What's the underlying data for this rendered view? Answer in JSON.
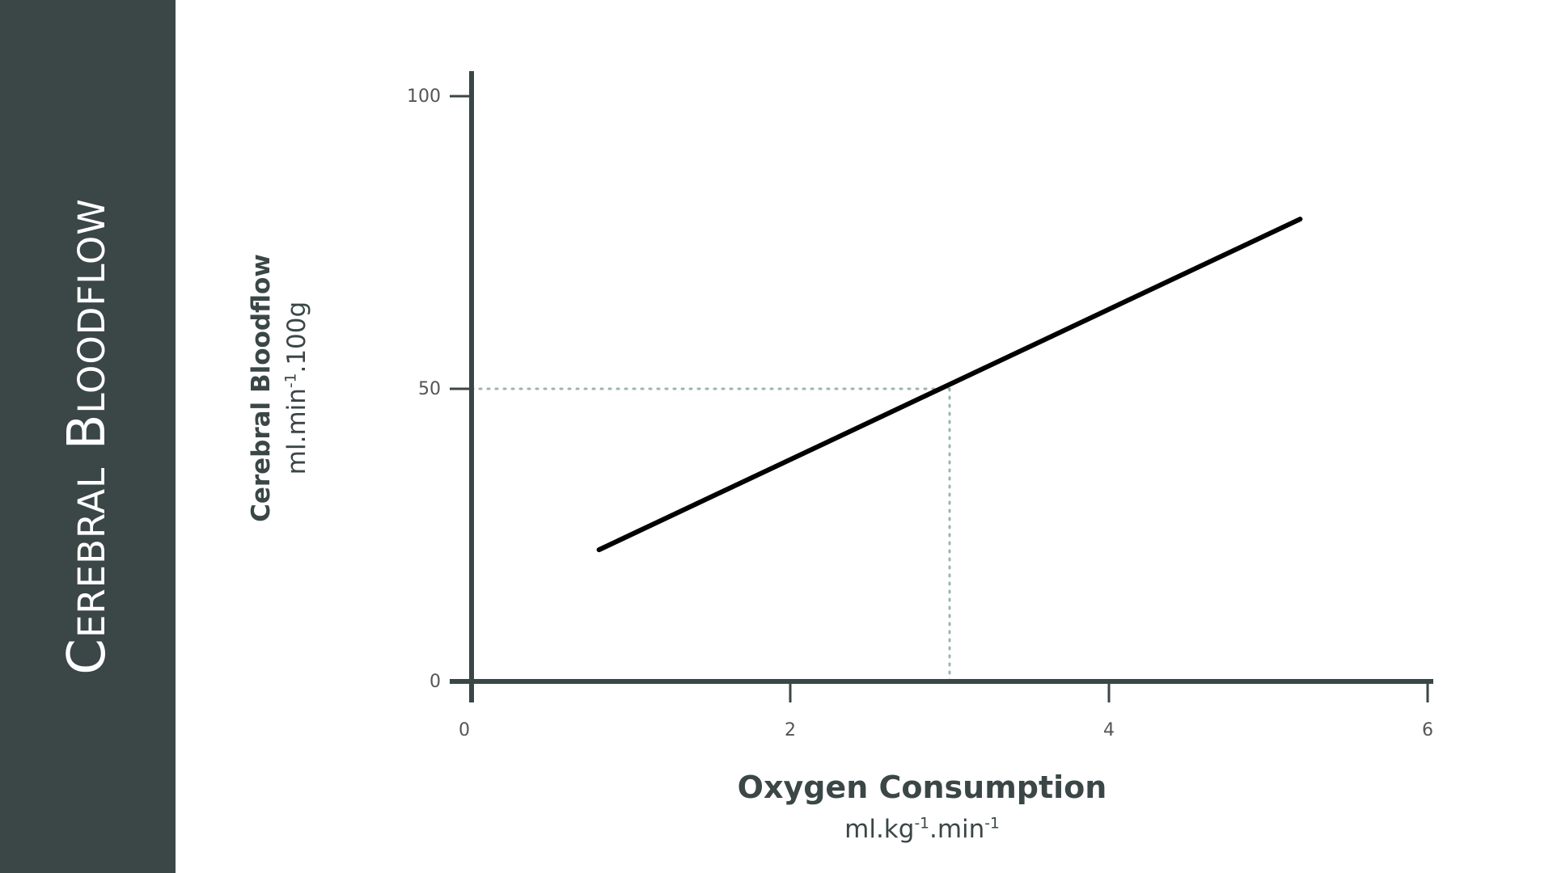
{
  "title": "Cerebral Bloodflow",
  "colors": {
    "panel": "#3b4646",
    "axis": "#3b4646",
    "line": "#000000",
    "reference": "#9bb5b5",
    "tick_text": "#555555"
  },
  "chart_data": {
    "type": "line",
    "title": "Cerebral Bloodflow",
    "xlabel": "Oxygen Consumption",
    "xlabel_unit_parts": [
      "ml.kg",
      "-1",
      ".min",
      "-1"
    ],
    "ylabel": "Cerebral Bloodflow",
    "ylabel_unit_parts": [
      "ml.min",
      "-1",
      ".100g"
    ],
    "xlim": [
      0,
      6.5
    ],
    "ylim": [
      0,
      100
    ],
    "xticks": [
      0,
      2,
      4,
      6
    ],
    "yticks": [
      0,
      50,
      100
    ],
    "grid": false,
    "series": [
      {
        "x": [
          0.8,
          5.2
        ],
        "y": [
          22.5,
          79
        ]
      }
    ],
    "reference_point": {
      "x": 3,
      "y": 50
    }
  }
}
